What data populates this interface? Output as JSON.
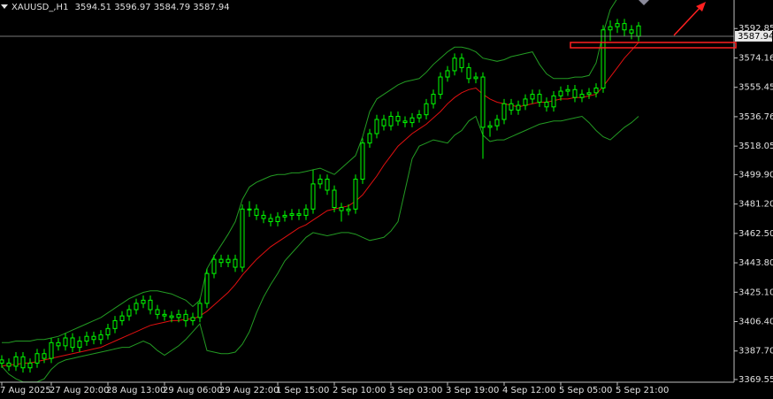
{
  "chart_data": {
    "type": "candlestick",
    "symbol": "XAUUSD_,H1",
    "color": "#00ff00",
    "categories": [
      "7 Aug 2025",
      null,
      null,
      null,
      null,
      null,
      null,
      "27 Aug 20:00",
      null,
      null,
      null,
      null,
      null,
      null,
      null,
      "28 Aug 13:00",
      null,
      null,
      null,
      null,
      null,
      null,
      null,
      "29 Aug 06:00",
      null,
      null,
      null,
      null,
      null,
      null,
      null,
      "29 Aug 22:00",
      null,
      null,
      null,
      null,
      null,
      null,
      null,
      "1 Sep 15:00",
      null,
      null,
      null,
      null,
      null,
      null,
      null,
      "2 Sep 10:00",
      null,
      null,
      null,
      null,
      null,
      null,
      null,
      "3 Sep 03:00",
      null,
      null,
      null,
      null,
      null,
      null,
      null,
      "3 Sep 19:00",
      null,
      null,
      null,
      null,
      null,
      null,
      null,
      "4 Sep 12:00",
      null,
      null,
      null,
      null,
      null,
      null,
      null,
      "5 Sep 05:00",
      null,
      null,
      null,
      null,
      null,
      null,
      null,
      "5 Sep 21:00",
      null,
      null,
      null
    ],
    "open": [
      3382,
      3380,
      3378,
      3384,
      3377,
      3380,
      3386,
      3383,
      3393,
      3391,
      3396,
      3390,
      3394,
      3397,
      3395,
      3398,
      3402,
      3407,
      3410,
      3414,
      3418,
      3420,
      3414,
      3411,
      3410,
      3409,
      3411,
      3407,
      3409,
      3418,
      3437,
      3446,
      3444,
      3446,
      3441,
      3478,
      3478,
      3474,
      3472,
      3470,
      3473,
      3474,
      3475,
      3474,
      3478,
      3494,
      3497,
      3490,
      3479,
      3477,
      3478,
      3497,
      3520,
      3526,
      3535,
      3531,
      3537,
      3534,
      3533,
      3536,
      3538,
      3545,
      3551,
      3562,
      3566,
      3574,
      3568,
      3561,
      3562,
      3530,
      3531,
      3535,
      3545,
      3541,
      3544,
      3548,
      3551,
      3546,
      3543,
      3550,
      3553,
      3554,
      3549,
      3551,
      3552,
      3555,
      3592,
      3594,
      3596,
      3592,
      3594.51
    ],
    "high": [
      3385,
      3383,
      3387,
      3387,
      3383,
      3389,
      3389,
      3396,
      3396,
      3399,
      3399,
      3397,
      3400,
      3400,
      3401,
      3405,
      3410,
      3413,
      3417,
      3421,
      3423,
      3423,
      3417,
      3414,
      3413,
      3414,
      3414,
      3412,
      3421,
      3440,
      3449,
      3449,
      3449,
      3449,
      3481,
      3483,
      3481,
      3477,
      3475,
      3476,
      3477,
      3478,
      3478,
      3481,
      3503,
      3500,
      3500,
      3493,
      3482,
      3481,
      3500,
      3523,
      3529,
      3538,
      3538,
      3540,
      3540,
      3537,
      3539,
      3541,
      3548,
      3554,
      3565,
      3569,
      3577,
      3577,
      3571,
      3565,
      3565,
      3534,
      3538,
      3548,
      3548,
      3547,
      3551,
      3554,
      3554,
      3549,
      3553,
      3556,
      3557,
      3557,
      3554,
      3555,
      3558,
      3595,
      3598,
      3599,
      3599,
      3595,
      3596.97
    ],
    "low": [
      3377,
      3375,
      3375,
      3374,
      3374,
      3377,
      3380,
      3380,
      3388,
      3388,
      3387,
      3387,
      3391,
      3392,
      3392,
      3395,
      3399,
      3404,
      3407,
      3411,
      3415,
      3411,
      3408,
      3407,
      3406,
      3406,
      3403,
      3404,
      3406,
      3415,
      3434,
      3441,
      3441,
      3438,
      3438,
      3473,
      3471,
      3469,
      3467,
      3467,
      3470,
      3471,
      3471,
      3471,
      3475,
      3491,
      3487,
      3476,
      3470,
      3474,
      3475,
      3494,
      3517,
      3523,
      3528,
      3528,
      3531,
      3530,
      3530,
      3533,
      3535,
      3542,
      3548,
      3559,
      3563,
      3565,
      3558,
      3558,
      3510,
      3524,
      3528,
      3532,
      3538,
      3538,
      3541,
      3545,
      3543,
      3540,
      3540,
      3547,
      3550,
      3546,
      3546,
      3548,
      3549,
      3552,
      3585,
      3590,
      3588,
      3586,
      3584.79
    ],
    "close": [
      3380,
      3378,
      3384,
      3377,
      3380,
      3386,
      3383,
      3393,
      3391,
      3396,
      3390,
      3394,
      3397,
      3395,
      3398,
      3402,
      3407,
      3410,
      3414,
      3418,
      3420,
      3414,
      3411,
      3410,
      3409,
      3411,
      3407,
      3409,
      3418,
      3437,
      3446,
      3444,
      3446,
      3441,
      3478,
      3478,
      3474,
      3472,
      3470,
      3473,
      3474,
      3475,
      3474,
      3478,
      3494,
      3497,
      3490,
      3479,
      3477,
      3478,
      3497,
      3520,
      3526,
      3535,
      3531,
      3537,
      3534,
      3533,
      3536,
      3538,
      3545,
      3551,
      3562,
      3566,
      3574,
      3568,
      3561,
      3562,
      3530,
      3531,
      3535,
      3545,
      3541,
      3544,
      3548,
      3551,
      3546,
      3543,
      3550,
      3553,
      3554,
      3549,
      3551,
      3552,
      3555,
      3592,
      3594,
      3596,
      3592,
      3590,
      3587.94
    ],
    "indicators": [
      {
        "color": "#239b23",
        "values": [
          3393,
          3393,
          3394,
          3394,
          3394,
          3395,
          3395,
          3396,
          3397,
          3399,
          3401,
          3403,
          3405,
          3407,
          3409,
          3412,
          3415,
          3418,
          3421,
          3423,
          3425,
          3426,
          3426,
          3425,
          3424,
          3422,
          3420,
          3416,
          3420,
          3440,
          3448,
          3455,
          3462,
          3470,
          3484,
          3492,
          3495,
          3497,
          3499,
          3500,
          3500,
          3501,
          3501,
          3502,
          3503,
          3504,
          3502,
          3500,
          3504,
          3508,
          3512,
          3524,
          3540,
          3548,
          3551,
          3554,
          3557,
          3559,
          3560,
          3561,
          3565,
          3570,
          3574,
          3578,
          3581,
          3581,
          3580,
          3578,
          3574,
          3573,
          3572,
          3573,
          3575,
          3576,
          3577,
          3578,
          3570,
          3564,
          3561,
          3561,
          3561,
          3562,
          3562,
          3563,
          3571,
          3590,
          3605,
          3612,
          3617,
          3619,
          3620
        ]
      },
      {
        "color": "#239b23",
        "values": [
          3378,
          3373,
          3370,
          3368,
          3368,
          3368,
          3370,
          3376,
          3380,
          3382,
          3383,
          3384,
          3385,
          3386,
          3387,
          3388,
          3389,
          3390,
          3390,
          3392,
          3394,
          3392,
          3388,
          3385,
          3388,
          3391,
          3395,
          3400,
          3405,
          3388,
          3387,
          3386,
          3386,
          3387,
          3392,
          3400,
          3412,
          3422,
          3430,
          3437,
          3445,
          3450,
          3455,
          3460,
          3463,
          3462,
          3461,
          3462,
          3463,
          3463,
          3462,
          3460,
          3458,
          3459,
          3460,
          3464,
          3470,
          3490,
          3510,
          3518,
          3520,
          3522,
          3521,
          3520,
          3525,
          3528,
          3534,
          3537,
          3525,
          3521,
          3522,
          3522,
          3524,
          3526,
          3528,
          3530,
          3532,
          3533,
          3534,
          3534,
          3535,
          3536,
          3537,
          3533,
          3528,
          3524,
          3522,
          3526,
          3530,
          3533,
          3537
        ]
      },
      {
        "color": "#e01010",
        "values": [
          3378,
          3379,
          3379,
          3380,
          3380,
          3381,
          3382,
          3383,
          3384,
          3385,
          3386,
          3387,
          3388,
          3389,
          3390,
          3392,
          3394,
          3396,
          3398,
          3400,
          3402,
          3404,
          3405,
          3406,
          3407,
          3407,
          3408,
          3408,
          3410,
          3413,
          3417,
          3421,
          3425,
          3430,
          3436,
          3441,
          3446,
          3450,
          3454,
          3457,
          3460,
          3463,
          3466,
          3468,
          3471,
          3474,
          3477,
          3478,
          3479,
          3480,
          3483,
          3487,
          3493,
          3499,
          3506,
          3512,
          3518,
          3522,
          3526,
          3529,
          3532,
          3536,
          3540,
          3545,
          3549,
          3552,
          3554,
          3555,
          3551,
          3548,
          3546,
          3545,
          3544,
          3543,
          3544,
          3545,
          3546,
          3546,
          3547,
          3548,
          3548,
          3549,
          3549,
          3550,
          3551,
          3556,
          3562,
          3568,
          3574,
          3579,
          3584
        ]
      }
    ],
    "ylim": [
      3367.85,
      3611.0
    ],
    "yticks": [
      3592.85,
      3574.16,
      3555.45,
      3536.76,
      3518.05,
      {
        "value": 3499.9,
        "label": "3499.90"
      },
      {
        "value": 3481.2,
        "label": "3481.20"
      },
      {
        "value": 3462.5,
        "label": "3462.50"
      },
      {
        "value": 3443.8,
        "label": "3443.80"
      },
      {
        "value": 3425.1,
        "label": "3425.10"
      },
      {
        "value": 3406.4,
        "label": "3406.40"
      },
      {
        "value": 3387.7,
        "label": "3387.70"
      },
      3369.55
    ]
  }
}
